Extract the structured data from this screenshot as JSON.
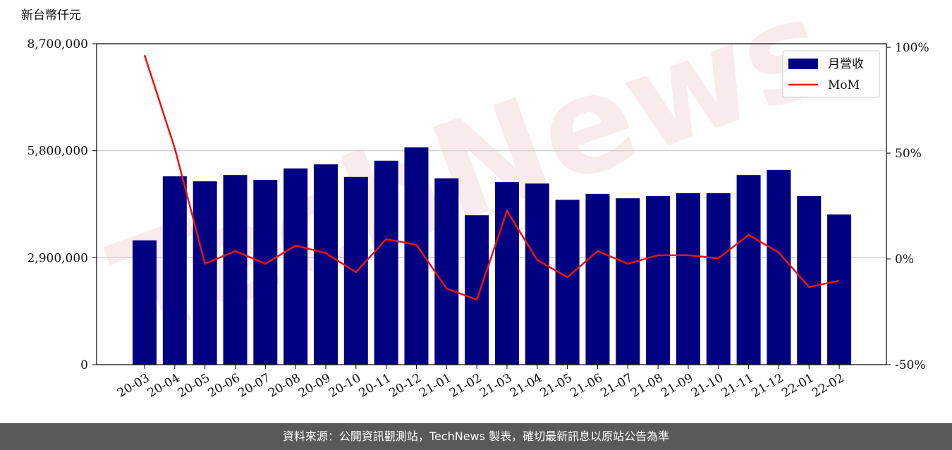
{
  "chart_data": {
    "type": "bar_line",
    "y_label": "新台幣仟元",
    "watermark": "TechNews",
    "categories": [
      "20-03",
      "20-04",
      "20-05",
      "20-06",
      "20-07",
      "20-08",
      "20-09",
      "20-10",
      "20-11",
      "20-12",
      "21-01",
      "21-02",
      "21-03",
      "21-04",
      "21-05",
      "21-06",
      "21-07",
      "21-08",
      "21-09",
      "21-10",
      "21-11",
      "21-12",
      "22-01",
      "22-02"
    ],
    "series": [
      {
        "name": "月營收",
        "type": "bar",
        "color": "#000080",
        "values": [
          3370000,
          5105000,
          4970000,
          5140000,
          5010000,
          5320000,
          5430000,
          5090000,
          5530000,
          5890000,
          5050000,
          4050000,
          4950000,
          4910000,
          4470000,
          4630000,
          4510000,
          4570000,
          4650000,
          4650000,
          5140000,
          5280000,
          4570000,
          4070000
        ]
      },
      {
        "name": "MoM",
        "type": "line",
        "axis": "y2",
        "color": "#ee1111",
        "values": [
          96.3,
          52.3,
          -2.3,
          3.7,
          -2.3,
          6.3,
          2.7,
          -6.3,
          9.3,
          6.7,
          -14,
          -19.3,
          22.7,
          -0.5,
          -8.7,
          3.7,
          -2.3,
          1.7,
          1.7,
          0.3,
          11.3,
          3,
          -13.3,
          -10.3
        ]
      }
    ],
    "ylim": [
      0,
      8700000
    ],
    "yticks": [
      0,
      {
        "value": 2900000,
        "label": "2,900,000"
      },
      {
        "value": 5800000,
        "label": "5,800,000"
      },
      {
        "value": 8700000,
        "label": "8,700,000"
      }
    ],
    "y2lim": [
      -50,
      101.7
    ],
    "y2ticks": [
      {
        "value": -50,
        "label": "-50%"
      },
      {
        "value": 0,
        "label": "0%"
      },
      {
        "value": 50,
        "label": "50%"
      },
      {
        "value": 100,
        "label": "100%"
      }
    ],
    "grid": true,
    "legend": "upper right"
  },
  "footer": "資料來源：公開資訊觀測站，TechNews 製表，確切最新訊息以原站公告為準"
}
